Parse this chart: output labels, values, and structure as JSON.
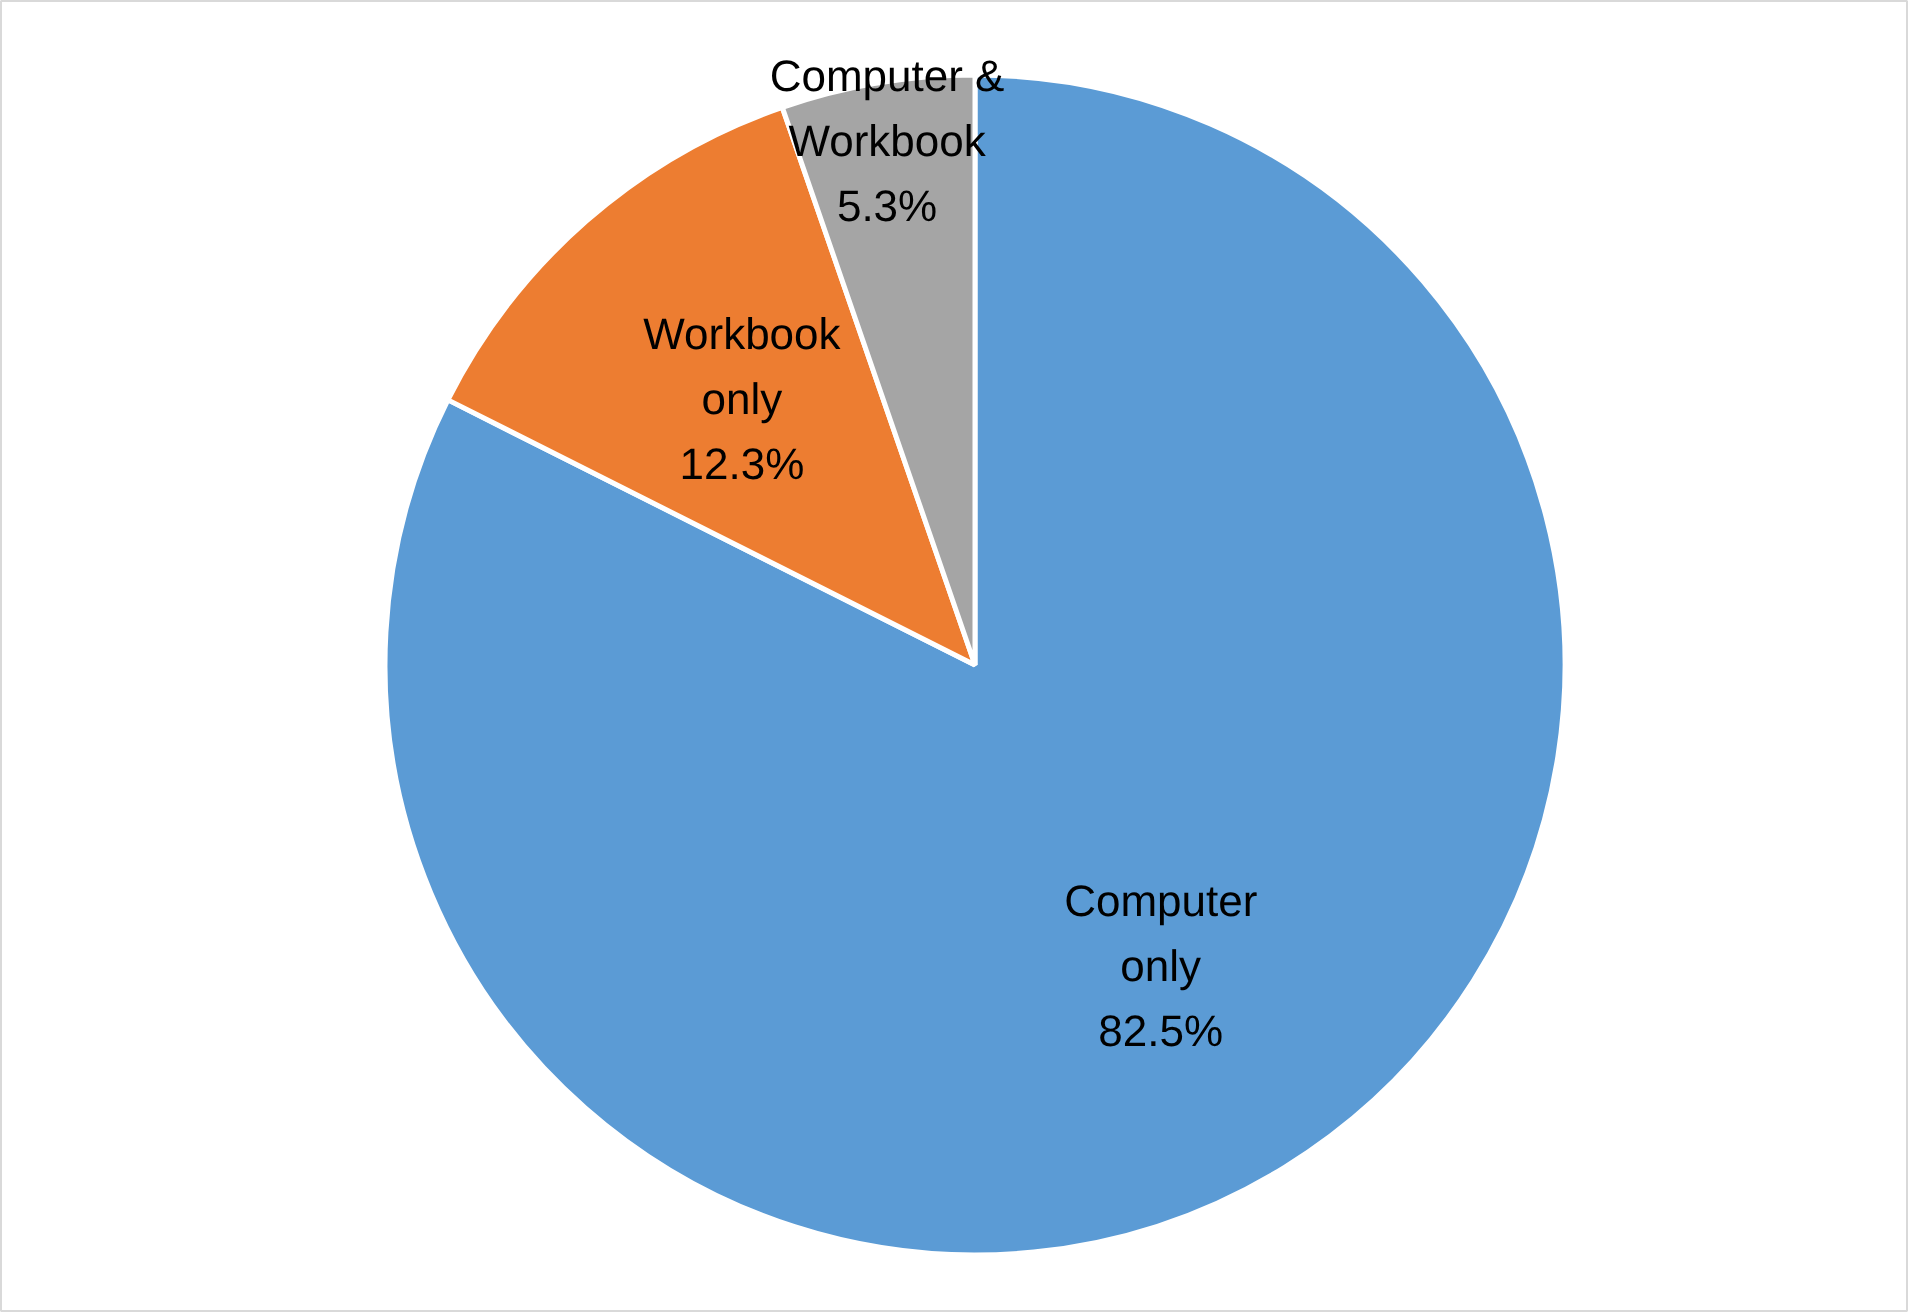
{
  "chart_data": {
    "type": "pie",
    "categories": [
      "Computer only",
      "Workbook only",
      "Computer & Workbook"
    ],
    "values": [
      82.5,
      12.3,
      5.3
    ],
    "colors": [
      "#5b9bd5",
      "#ed7d31",
      "#a5a5a5"
    ],
    "value_labels": [
      "82.5%",
      "12.3%",
      "5.3%"
    ],
    "legend": false
  }
}
